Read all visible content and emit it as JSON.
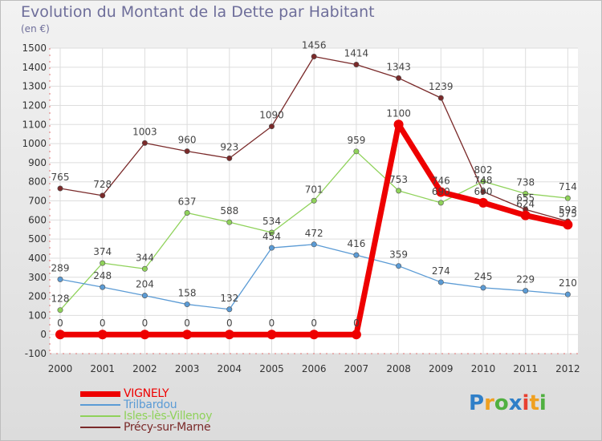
{
  "title": "Evolution du Montant de la Dette par Habitant",
  "unit": "(en €)",
  "brand": {
    "letters": [
      "P",
      "r",
      "o",
      "x",
      "i",
      "t",
      "i"
    ],
    "colors": [
      "#2f7fc8",
      "#f0a020",
      "#50b040",
      "#2f7fc8",
      "#e84030",
      "#f0a020",
      "#50b040"
    ]
  },
  "chart_data": {
    "type": "line",
    "title": "Evolution du Montant de la Dette par Habitant",
    "ylabel": "(en €)",
    "xlabel": "",
    "categories": [
      "2000",
      "2001",
      "2002",
      "2003",
      "2004",
      "2005",
      "2006",
      "2007",
      "2008",
      "2009",
      "2010",
      "2011",
      "2012"
    ],
    "ylim": [
      -100,
      1500
    ],
    "yticks": [
      -100,
      0,
      100,
      200,
      300,
      400,
      500,
      600,
      700,
      800,
      900,
      1000,
      1100,
      1200,
      1300,
      1400,
      1500
    ],
    "grid": true,
    "legend_position": "bottom-left",
    "series": [
      {
        "name": "VIGNELY",
        "color": "#ee0000",
        "bold": true,
        "values": [
          0,
          0,
          0,
          0,
          0,
          0,
          0,
          0,
          1100,
          746,
          690,
          624,
          575
        ]
      },
      {
        "name": "Trilbardou",
        "color": "#5b9bd5",
        "bold": false,
        "values": [
          289,
          248,
          204,
          158,
          132,
          454,
          472,
          416,
          359,
          274,
          245,
          229,
          210
        ]
      },
      {
        "name": "Isles-lès-Villenoy",
        "color": "#8fd25a",
        "bold": false,
        "values": [
          128,
          374,
          344,
          637,
          588,
          534,
          701,
          959,
          753,
          690,
          802,
          738,
          714
        ]
      },
      {
        "name": "Précy-sur-Marne",
        "color": "#7a2a2a",
        "bold": false,
        "values": [
          765,
          728,
          1003,
          960,
          923,
          1090,
          1456,
          1414,
          1343,
          1239,
          748,
          655,
          593
        ]
      }
    ]
  }
}
